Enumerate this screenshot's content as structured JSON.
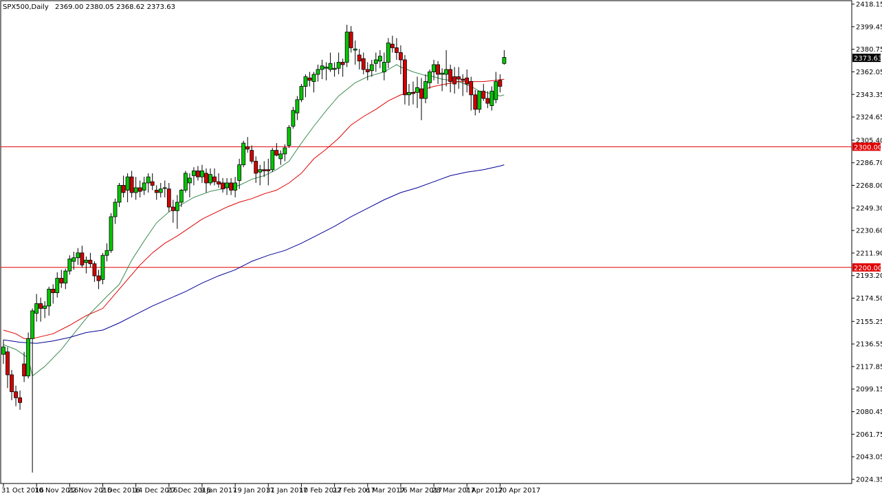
{
  "header": {
    "symbol": "SPX500,Daily",
    "ohlc": "2369.00 2380.05 2368.62 2373.63"
  },
  "colors": {
    "background": "#ffffff",
    "axis": "#000000",
    "bull_body": "#00c800",
    "bear_body": "#d40000",
    "wick": "#000000",
    "ma_fast": "#3c8c50",
    "ma_mid": "#e00000",
    "ma_slow": "#000096",
    "hline": "#e00000",
    "price_tag_bg": "#000000",
    "price_tag_fg": "#ffffff"
  },
  "chart_data": {
    "type": "candlestick",
    "title": "SPX500,Daily",
    "price_axis_labels": [
      "2418.15",
      "2399.45",
      "2380.75",
      "2362.05",
      "2343.35",
      "2324.65",
      "2305.40",
      "2286.70",
      "2268.00",
      "2249.30",
      "2230.60",
      "2211.90",
      "2193.20",
      "2174.50",
      "2155.25",
      "2136.55",
      "2117.85",
      "2099.15",
      "2080.45",
      "2061.75",
      "2043.05",
      "2024.35"
    ],
    "ylim": [
      2024.35,
      2418.15
    ],
    "date_axis_labels": [
      "31 Oct 2016",
      "10 Nov 2016",
      "22 Nov 2016",
      "2 Dec 2016",
      "14 Dec 2016",
      "27 Dec 2016",
      "9 Jan 2017",
      "19 Jan 2017",
      "31 Jan 2017",
      "10 Feb 2017",
      "22 Feb 2017",
      "6 Mar 2017",
      "16 Mar 2017",
      "28 Mar 2017",
      "7 Apr 2017",
      "20 Apr 2017"
    ],
    "date_label_bar_index": [
      0,
      8,
      16,
      24,
      32,
      40,
      48,
      56,
      64,
      72,
      80,
      88,
      96,
      104,
      112,
      120
    ],
    "horizontal_lines": [
      {
        "price": 2300.0,
        "label": "2300.00"
      },
      {
        "price": 2200.0,
        "label": "2200.00"
      }
    ],
    "current_price": {
      "price": 2373.63,
      "label": "2373.63"
    },
    "candles": [
      [
        2128,
        2140,
        2120,
        2134
      ],
      [
        2130,
        2134,
        2100,
        2111
      ],
      [
        2111,
        2115,
        2090,
        2097
      ],
      [
        2097,
        2102,
        2085,
        2092
      ],
      [
        2092,
        2098,
        2082,
        2088
      ],
      [
        2120,
        2130,
        2105,
        2110
      ],
      [
        2110,
        2146,
        2108,
        2141
      ],
      [
        2141,
        2166,
        2030,
        2164
      ],
      [
        2162,
        2178,
        2155,
        2170
      ],
      [
        2170,
        2175,
        2155,
        2166
      ],
      [
        2166,
        2172,
        2158,
        2168
      ],
      [
        2168,
        2184,
        2160,
        2182
      ],
      [
        2182,
        2186,
        2170,
        2179
      ],
      [
        2179,
        2196,
        2175,
        2191
      ],
      [
        2191,
        2198,
        2183,
        2187
      ],
      [
        2187,
        2199,
        2182,
        2197
      ],
      [
        2197,
        2210,
        2194,
        2207
      ],
      [
        2205,
        2213,
        2198,
        2208
      ],
      [
        2208,
        2216,
        2202,
        2212
      ],
      [
        2212,
        2218,
        2200,
        2202
      ],
      [
        2204,
        2209,
        2195,
        2206
      ],
      [
        2206,
        2212,
        2200,
        2203
      ],
      [
        2203,
        2205,
        2188,
        2193
      ],
      [
        2193,
        2198,
        2182,
        2189
      ],
      [
        2190,
        2212,
        2186,
        2210
      ],
      [
        2210,
        2220,
        2205,
        2214
      ],
      [
        2214,
        2245,
        2212,
        2242
      ],
      [
        2242,
        2257,
        2236,
        2254
      ],
      [
        2254,
        2270,
        2250,
        2268
      ],
      [
        2268,
        2276,
        2258,
        2262
      ],
      [
        2264,
        2278,
        2254,
        2275
      ],
      [
        2275,
        2280,
        2258,
        2262
      ],
      [
        2262,
        2275,
        2256,
        2266
      ],
      [
        2266,
        2272,
        2258,
        2263
      ],
      [
        2264,
        2275,
        2260,
        2270
      ],
      [
        2270,
        2278,
        2262,
        2275
      ],
      [
        2271,
        2278,
        2264,
        2268
      ],
      [
        2264,
        2268,
        2256,
        2262
      ],
      [
        2262,
        2270,
        2258,
        2265
      ],
      [
        2266,
        2272,
        2258,
        2266
      ],
      [
        2265,
        2270,
        2246,
        2250
      ],
      [
        2250,
        2256,
        2237,
        2247
      ],
      [
        2247,
        2260,
        2232,
        2254
      ],
      [
        2254,
        2265,
        2250,
        2264
      ],
      [
        2264,
        2280,
        2262,
        2278
      ],
      [
        2270,
        2278,
        2258,
        2274
      ],
      [
        2276,
        2283,
        2268,
        2280
      ],
      [
        2280,
        2284,
        2272,
        2275
      ],
      [
        2275,
        2285,
        2270,
        2280
      ],
      [
        2278,
        2282,
        2262,
        2270
      ],
      [
        2270,
        2282,
        2268,
        2277
      ],
      [
        2275,
        2282,
        2268,
        2271
      ],
      [
        2271,
        2278,
        2266,
        2269
      ],
      [
        2270,
        2274,
        2262,
        2265
      ],
      [
        2266,
        2274,
        2260,
        2270
      ],
      [
        2270,
        2274,
        2260,
        2264
      ],
      [
        2264,
        2275,
        2258,
        2270
      ],
      [
        2272,
        2290,
        2265,
        2285
      ],
      [
        2285,
        2305,
        2283,
        2303
      ],
      [
        2300,
        2308,
        2295,
        2298
      ],
      [
        2297,
        2301,
        2286,
        2288
      ],
      [
        2288,
        2292,
        2270,
        2278
      ],
      [
        2279,
        2285,
        2268,
        2281
      ],
      [
        2281,
        2288,
        2275,
        2280
      ],
      [
        2281,
        2290,
        2268,
        2280
      ],
      [
        2281,
        2299,
        2279,
        2297
      ],
      [
        2297,
        2303,
        2292,
        2293
      ],
      [
        2290,
        2297,
        2285,
        2294
      ],
      [
        2294,
        2302,
        2288,
        2299
      ],
      [
        2301,
        2318,
        2299,
        2316
      ],
      [
        2317,
        2333,
        2315,
        2330
      ],
      [
        2328,
        2342,
        2322,
        2339
      ],
      [
        2339,
        2352,
        2337,
        2350
      ],
      [
        2350,
        2360,
        2341,
        2358
      ],
      [
        2357,
        2362,
        2350,
        2355
      ],
      [
        2354,
        2362,
        2345,
        2360
      ],
      [
        2360,
        2368,
        2354,
        2364
      ],
      [
        2364,
        2372,
        2356,
        2367
      ],
      [
        2365,
        2370,
        2355,
        2366
      ],
      [
        2364,
        2378,
        2362,
        2369
      ],
      [
        2364,
        2370,
        2358,
        2365
      ],
      [
        2365,
        2378,
        2360,
        2370
      ],
      [
        2370,
        2373,
        2358,
        2368
      ],
      [
        2370,
        2401,
        2366,
        2395
      ],
      [
        2395,
        2400,
        2378,
        2382
      ],
      [
        2380,
        2388,
        2368,
        2381
      ],
      [
        2376,
        2381,
        2364,
        2371
      ],
      [
        2373,
        2378,
        2360,
        2364
      ],
      [
        2364,
        2370,
        2355,
        2362
      ],
      [
        2363,
        2372,
        2358,
        2368
      ],
      [
        2369,
        2378,
        2362,
        2372
      ],
      [
        2371,
        2380,
        2365,
        2375
      ],
      [
        2362,
        2378,
        2355,
        2370
      ],
      [
        2370,
        2390,
        2365,
        2386
      ],
      [
        2385,
        2392,
        2378,
        2382
      ],
      [
        2382,
        2390,
        2372,
        2378
      ],
      [
        2378,
        2384,
        2360,
        2372
      ],
      [
        2372,
        2376,
        2335,
        2343
      ],
      [
        2343,
        2352,
        2334,
        2345
      ],
      [
        2345,
        2354,
        2335,
        2344
      ],
      [
        2345,
        2358,
        2332,
        2349
      ],
      [
        2348,
        2357,
        2322,
        2340
      ],
      [
        2340,
        2360,
        2336,
        2354
      ],
      [
        2353,
        2364,
        2348,
        2362
      ],
      [
        2362,
        2372,
        2355,
        2368
      ],
      [
        2368,
        2371,
        2352,
        2360
      ],
      [
        2360,
        2365,
        2346,
        2361
      ],
      [
        2360,
        2380,
        2350,
        2364
      ],
      [
        2364,
        2368,
        2345,
        2354
      ],
      [
        2358,
        2366,
        2344,
        2352
      ],
      [
        2358,
        2366,
        2348,
        2356
      ],
      [
        2356,
        2360,
        2342,
        2355
      ],
      [
        2357,
        2364,
        2345,
        2352
      ],
      [
        2354,
        2358,
        2330,
        2343
      ],
      [
        2343,
        2347,
        2326,
        2331
      ],
      [
        2331,
        2345,
        2328,
        2346
      ],
      [
        2346,
        2352,
        2338,
        2340
      ],
      [
        2340,
        2346,
        2332,
        2336
      ],
      [
        2334,
        2350,
        2330,
        2346
      ],
      [
        2339,
        2362,
        2336,
        2354
      ],
      [
        2355,
        2360,
        2345,
        2350
      ],
      [
        2369,
        2380,
        2368,
        2374
      ]
    ],
    "series": [
      {
        "type": "line",
        "role": "ma_fast",
        "points": [
          [
            0,
            2136
          ],
          [
            3,
            2132
          ],
          [
            6,
            2125
          ],
          [
            7,
            2110
          ],
          [
            10,
            2118
          ],
          [
            14,
            2132
          ],
          [
            17,
            2145
          ],
          [
            21,
            2162
          ],
          [
            25,
            2176
          ],
          [
            28,
            2186
          ],
          [
            31,
            2206
          ],
          [
            34,
            2222
          ],
          [
            37,
            2237
          ],
          [
            40,
            2246
          ],
          [
            43,
            2252
          ],
          [
            46,
            2258
          ],
          [
            50,
            2263
          ],
          [
            54,
            2266
          ],
          [
            57,
            2268
          ],
          [
            60,
            2273
          ],
          [
            63,
            2276
          ],
          [
            66,
            2281
          ],
          [
            69,
            2288
          ],
          [
            72,
            2303
          ],
          [
            75,
            2317
          ],
          [
            78,
            2330
          ],
          [
            81,
            2342
          ],
          [
            85,
            2353
          ],
          [
            88,
            2358
          ],
          [
            92,
            2362
          ],
          [
            95,
            2368
          ],
          [
            96,
            2366
          ],
          [
            99,
            2362
          ],
          [
            102,
            2359
          ],
          [
            104,
            2358
          ],
          [
            106,
            2356
          ],
          [
            110,
            2354
          ],
          [
            113,
            2350
          ],
          [
            115,
            2346
          ],
          [
            118,
            2344
          ],
          [
            120,
            2342
          ],
          [
            121,
            2343
          ]
        ]
      },
      {
        "type": "line",
        "role": "ma_mid",
        "points": [
          [
            0,
            2148
          ],
          [
            3,
            2145
          ],
          [
            5,
            2141
          ],
          [
            7,
            2141
          ],
          [
            12,
            2145
          ],
          [
            16,
            2152
          ],
          [
            20,
            2160
          ],
          [
            24,
            2166
          ],
          [
            27,
            2178
          ],
          [
            30,
            2190
          ],
          [
            33,
            2202
          ],
          [
            36,
            2212
          ],
          [
            39,
            2220
          ],
          [
            42,
            2226
          ],
          [
            45,
            2233
          ],
          [
            48,
            2240
          ],
          [
            51,
            2245
          ],
          [
            54,
            2250
          ],
          [
            57,
            2254
          ],
          [
            60,
            2257
          ],
          [
            63,
            2261
          ],
          [
            66,
            2264
          ],
          [
            69,
            2270
          ],
          [
            72,
            2278
          ],
          [
            75,
            2290
          ],
          [
            78,
            2298
          ],
          [
            81,
            2307
          ],
          [
            84,
            2318
          ],
          [
            87,
            2325
          ],
          [
            90,
            2331
          ],
          [
            93,
            2338
          ],
          [
            96,
            2343
          ],
          [
            99,
            2345
          ],
          [
            102,
            2348
          ],
          [
            104,
            2350
          ],
          [
            107,
            2352
          ],
          [
            110,
            2354
          ],
          [
            113,
            2354
          ],
          [
            116,
            2354
          ],
          [
            119,
            2355
          ],
          [
            121,
            2356
          ]
        ]
      },
      {
        "type": "line",
        "role": "ma_slow",
        "points": [
          [
            0,
            2140
          ],
          [
            4,
            2138
          ],
          [
            8,
            2137
          ],
          [
            12,
            2139
          ],
          [
            16,
            2142
          ],
          [
            20,
            2146
          ],
          [
            24,
            2148
          ],
          [
            28,
            2154
          ],
          [
            32,
            2161
          ],
          [
            36,
            2168
          ],
          [
            40,
            2174
          ],
          [
            44,
            2180
          ],
          [
            48,
            2187
          ],
          [
            52,
            2193
          ],
          [
            56,
            2198
          ],
          [
            60,
            2205
          ],
          [
            64,
            2210
          ],
          [
            68,
            2214
          ],
          [
            72,
            2220
          ],
          [
            76,
            2227
          ],
          [
            80,
            2234
          ],
          [
            84,
            2242
          ],
          [
            88,
            2249
          ],
          [
            92,
            2256
          ],
          [
            96,
            2262
          ],
          [
            100,
            2266
          ],
          [
            104,
            2271
          ],
          [
            108,
            2276
          ],
          [
            112,
            2279
          ],
          [
            116,
            2281
          ],
          [
            120,
            2284
          ],
          [
            121,
            2285
          ]
        ]
      }
    ]
  }
}
